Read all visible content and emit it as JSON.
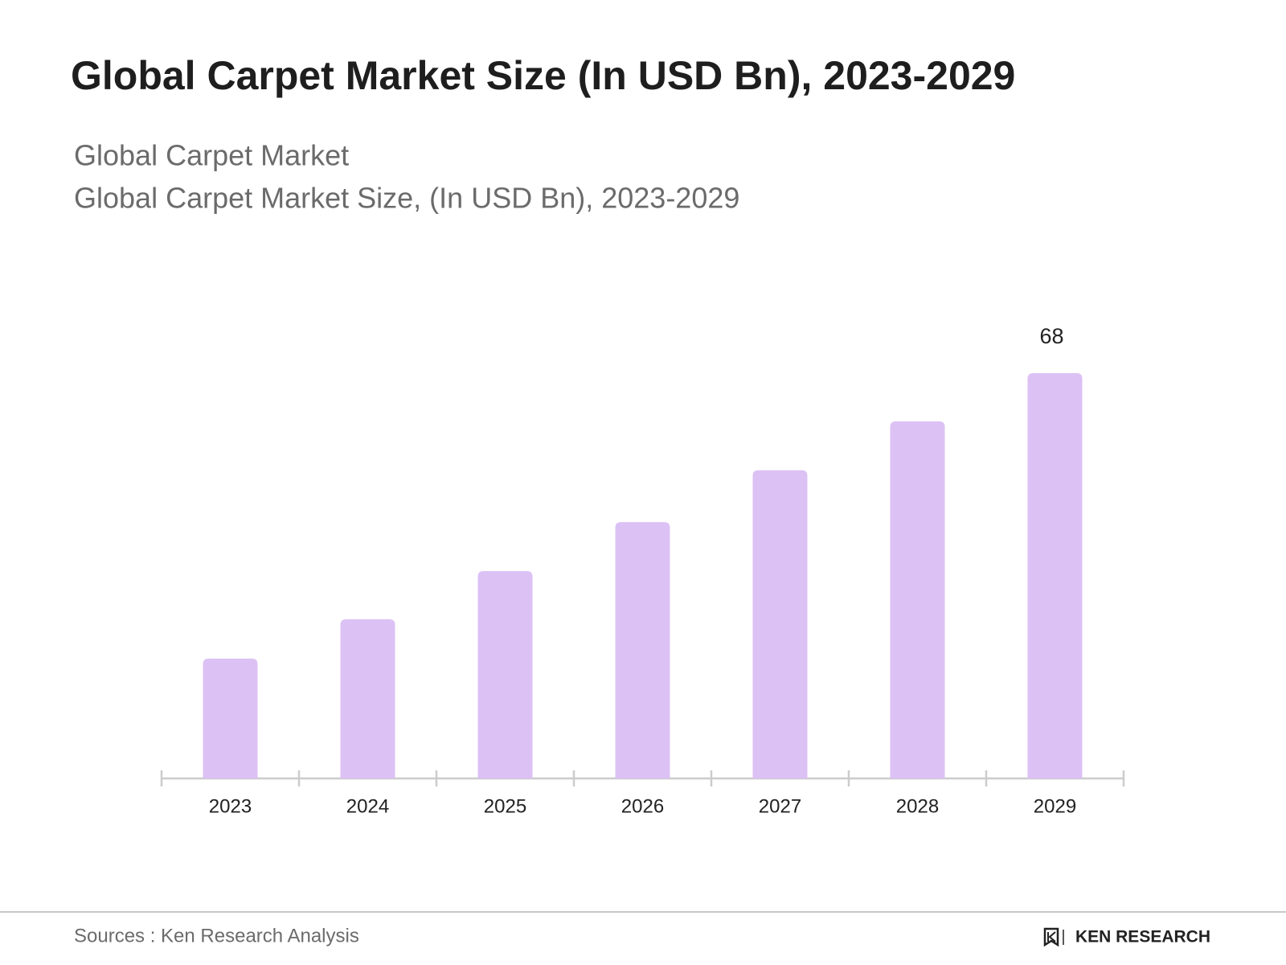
{
  "chart_data": {
    "type": "bar",
    "title": "Global Carpet Market Size (In USD Bn), 2023-2029",
    "subtitle": "Global Carpet Market",
    "subtitle2": "Global Carpet Market Size, (In USD Bn), 2023-2029",
    "categories": [
      "2023",
      "2024",
      "2025",
      "2026",
      "2027",
      "2028",
      "2029"
    ],
    "values": [
      20.1,
      26.7,
      34.8,
      43.0,
      51.7,
      59.9,
      68
    ],
    "color": "#dcc1f5",
    "source": "Sources : Ken Research Analysis",
    "logo": "KEN RESEARCH"
  }
}
